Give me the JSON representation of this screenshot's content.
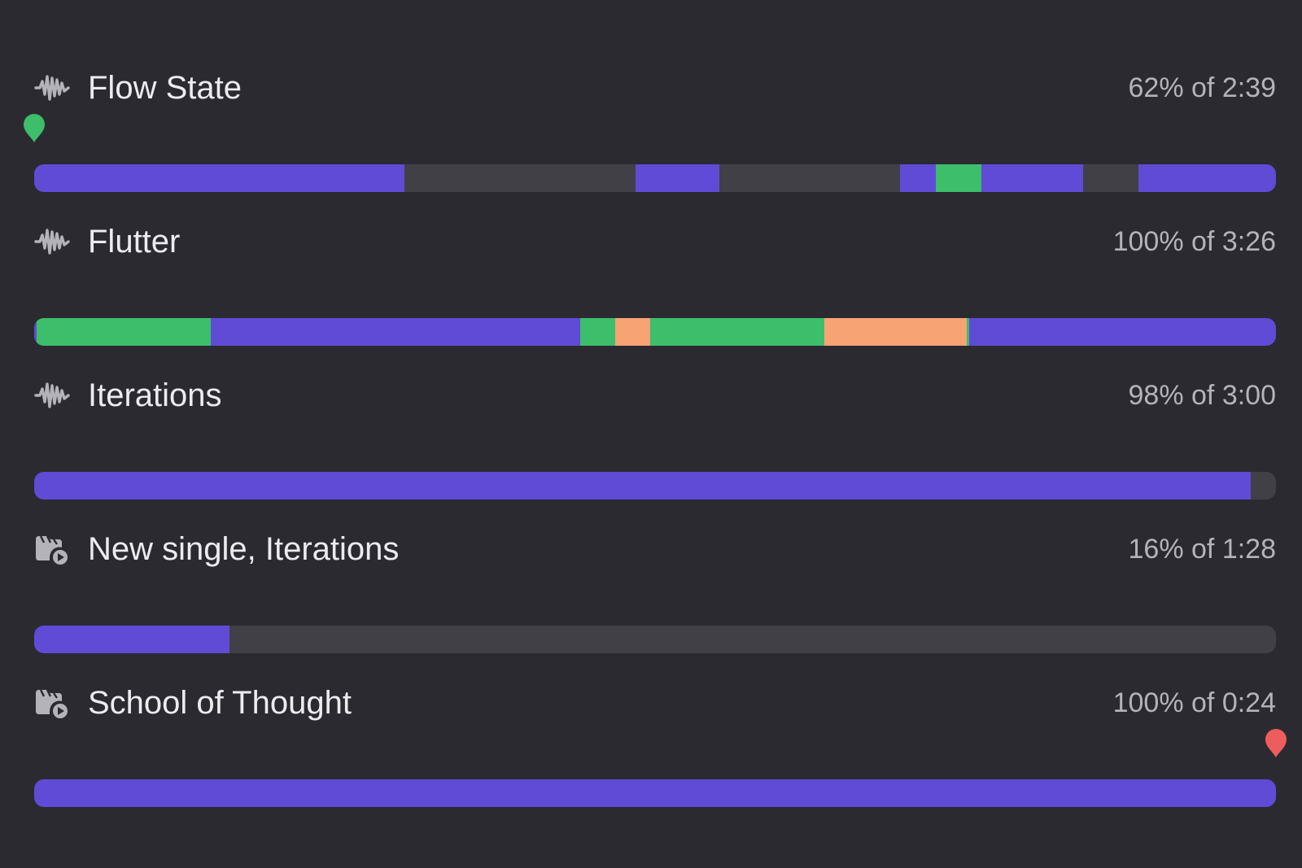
{
  "colors": {
    "background": "#2b2a30",
    "track": "#414046",
    "played": "#5f4bd6",
    "green": "#3cbe6a",
    "orange": "#f7a374",
    "marker_start": "#3cbe6a",
    "marker_end": "#ee5d5d"
  },
  "tracks": [
    {
      "icon": "waveform-icon",
      "title": "Flow State",
      "status": "62% of 2:39",
      "progress": 0.62,
      "segments": [
        {
          "start": 0.0,
          "end": 0.298,
          "color": "played"
        },
        {
          "start": 0.484,
          "end": 0.552,
          "color": "played"
        },
        {
          "start": 0.697,
          "end": 0.726,
          "color": "played"
        },
        {
          "start": 0.726,
          "end": 0.763,
          "color": "green"
        },
        {
          "start": 0.763,
          "end": 0.845,
          "color": "played"
        },
        {
          "start": 0.889,
          "end": 1.0,
          "color": "played"
        }
      ],
      "marker": {
        "type": "start",
        "position": 0.0
      }
    },
    {
      "icon": "waveform-icon",
      "title": "Flutter",
      "status": "100% of 3:26",
      "progress": 1.0,
      "segments": [
        {
          "start": 0.0,
          "end": 0.002,
          "color": "played"
        },
        {
          "start": 0.002,
          "end": 0.142,
          "color": "green"
        },
        {
          "start": 0.142,
          "end": 0.44,
          "color": "played"
        },
        {
          "start": 0.44,
          "end": 0.468,
          "color": "green"
        },
        {
          "start": 0.468,
          "end": 0.496,
          "color": "orange"
        },
        {
          "start": 0.496,
          "end": 0.636,
          "color": "green"
        },
        {
          "start": 0.636,
          "end": 0.751,
          "color": "orange"
        },
        {
          "start": 0.751,
          "end": 0.753,
          "color": "green"
        },
        {
          "start": 0.753,
          "end": 1.0,
          "color": "played"
        }
      ]
    },
    {
      "icon": "waveform-icon",
      "title": "Iterations",
      "status": "98% of 3:00",
      "progress": 0.98,
      "segments": [
        {
          "start": 0.0,
          "end": 0.98,
          "color": "played"
        }
      ]
    },
    {
      "icon": "video-folder-icon",
      "title": "New single, Iterations",
      "status": "16% of 1:28",
      "progress": 0.16,
      "segments": [
        {
          "start": 0.0,
          "end": 0.157,
          "color": "played"
        }
      ]
    },
    {
      "icon": "video-folder-icon",
      "title": "School of Thought",
      "status": "100% of 0:24",
      "progress": 1.0,
      "segments": [
        {
          "start": 0.0,
          "end": 1.0,
          "color": "played"
        }
      ],
      "marker": {
        "type": "end",
        "position": 1.0
      }
    }
  ]
}
